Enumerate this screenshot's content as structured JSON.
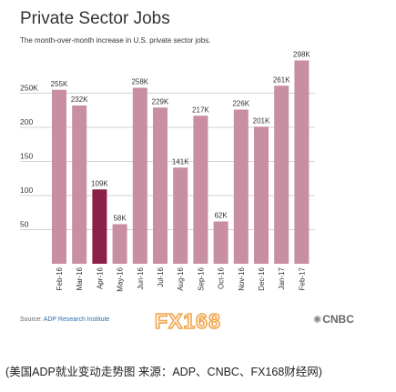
{
  "header": {
    "title": "Private Sector Jobs",
    "subtitle": "The month-over-month increase in U.S. private sector jobs."
  },
  "chart_data": {
    "type": "bar",
    "title": "Private Sector Jobs",
    "subtitle": "The month-over-month increase in U.S. private sector jobs.",
    "categories": [
      "Feb-16",
      "Mar-16",
      "Apr-16",
      "May-16",
      "Jun-16",
      "Jul-16",
      "Aug-16",
      "Sep-16",
      "Oct-16",
      "Nov-16",
      "Dec-16",
      "Jan-17",
      "Feb-17"
    ],
    "values": [
      255,
      232,
      109,
      58,
      258,
      229,
      141,
      217,
      62,
      226,
      201,
      261,
      298
    ],
    "value_labels": [
      "255K",
      "232K",
      "109K",
      "58K",
      "258K",
      "229K",
      "141K",
      "217K",
      "62K",
      "226K",
      "201K",
      "261K",
      "298K"
    ],
    "highlight_index": 2,
    "colors": {
      "bar": "#c88ea3",
      "highlight": "#8b2048",
      "grid": "#d3d3d3",
      "text": "#333333"
    },
    "y_ticks": [
      50,
      100,
      150,
      200,
      250
    ],
    "y_tick_labels": [
      "50",
      "100",
      "150",
      "200",
      "250K"
    ],
    "ylim": [
      0,
      300
    ],
    "xlabel": "",
    "ylabel": "",
    "grid": true
  },
  "footer": {
    "source_prefix": "Source: ",
    "source_name": "ADP Research Institute",
    "fx_logo": "FX168",
    "cnbc_logo": "CNBC",
    "peacock_icon": "peacock-icon"
  },
  "caption": "(美国ADP就业变动走势图 来源：ADP、CNBC、FX168财经网)"
}
